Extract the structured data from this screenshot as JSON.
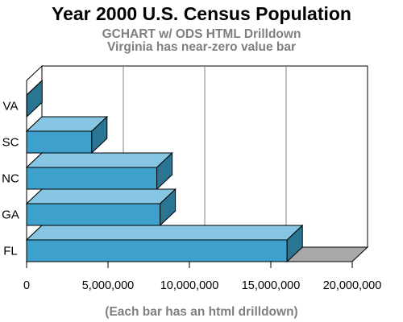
{
  "header": {
    "title": "Year 2000 U.S. Census Population",
    "subtitle_1": "GCHART w/ ODS HTML Drilldown",
    "subtitle_2": "Virginia has near-zero value bar"
  },
  "footnote": "(Each bar has an html drilldown)",
  "colors": {
    "bar_front": "#3ea0cc",
    "bar_top": "#86c6e2",
    "bar_side": "#2a7592",
    "floor": "#a8a8a8",
    "wall": "#ffffff",
    "grid": "#808080"
  },
  "chart_data": {
    "type": "bar",
    "orientation": "horizontal",
    "style": "3d",
    "categories": [
      "VA",
      "SC",
      "NC",
      "GA",
      "FL"
    ],
    "values": [
      15000,
      4000000,
      8000000,
      8200000,
      16000000
    ],
    "xlim": [
      0,
      20000000
    ],
    "x_ticks": [
      0,
      5000000,
      10000000,
      15000000,
      20000000
    ],
    "x_tick_labels": [
      "0",
      "5,000,000",
      "10,000,000",
      "15,000,000",
      "20,000,000"
    ],
    "grid": true
  }
}
